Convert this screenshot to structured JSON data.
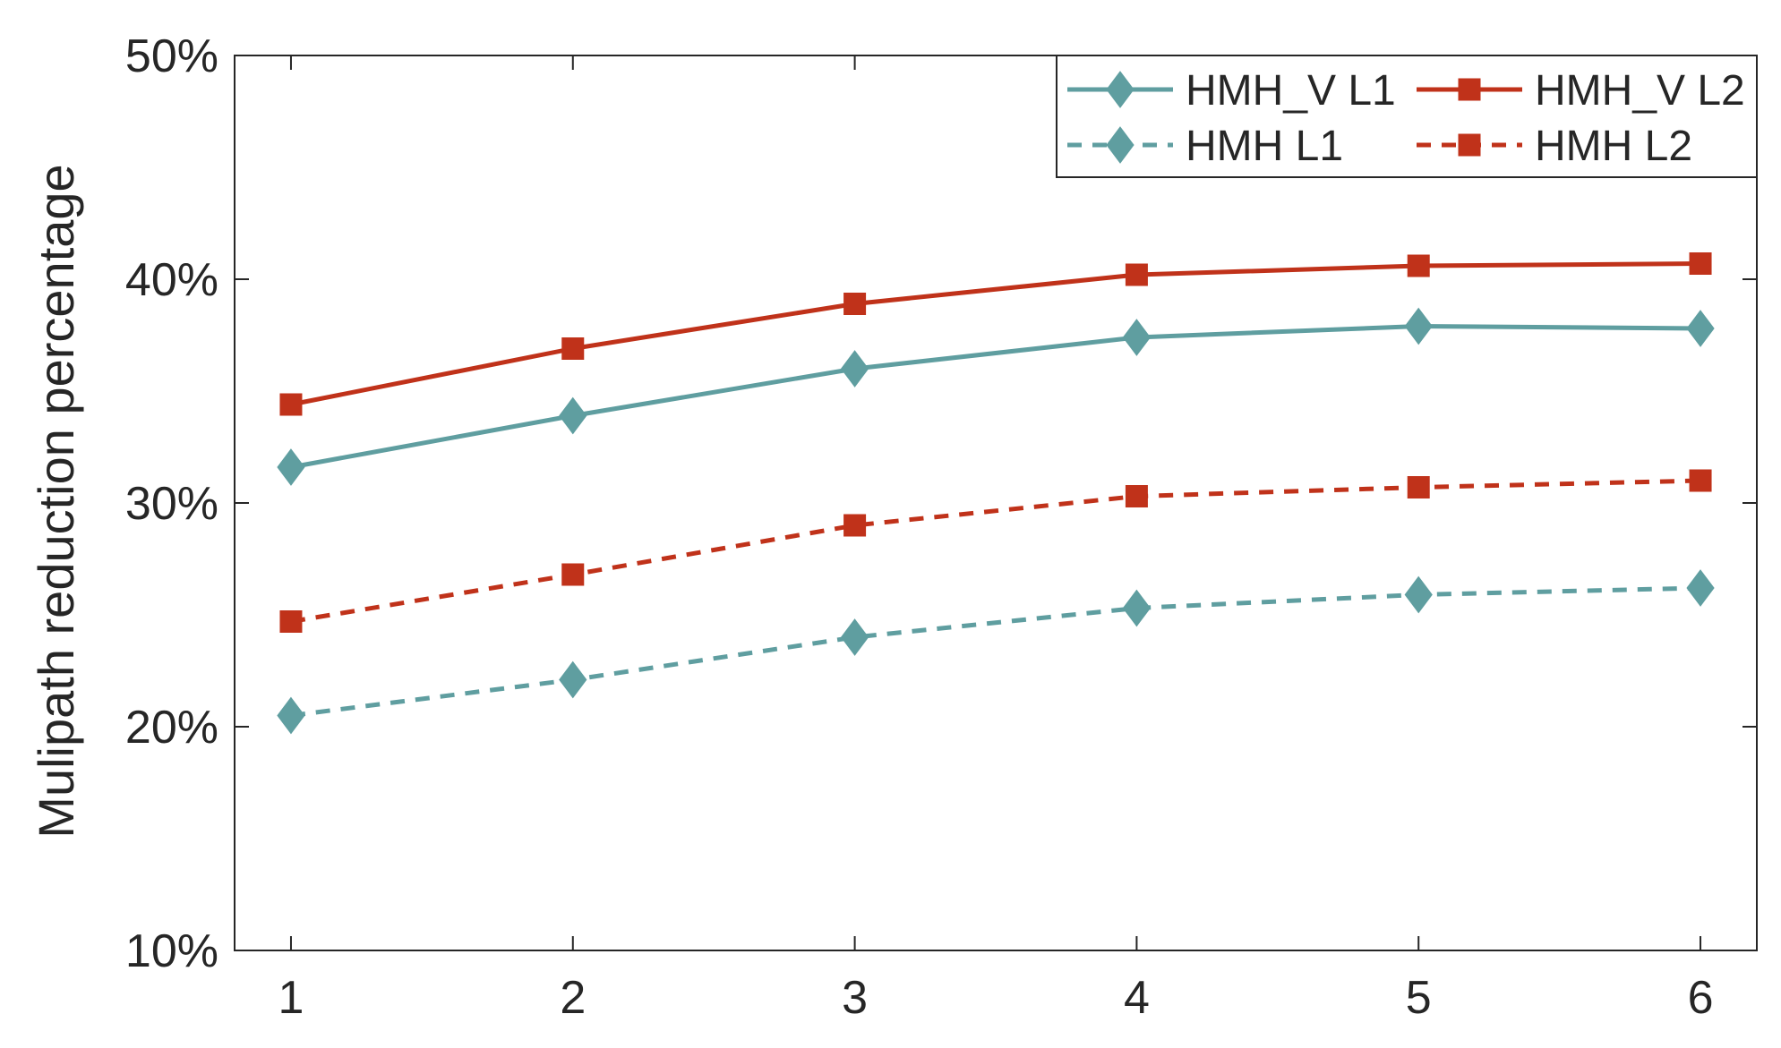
{
  "chart_data": {
    "type": "line",
    "title": "",
    "xlabel": "",
    "ylabel": "Mulipath reduction percentage",
    "x": [
      1,
      2,
      3,
      4,
      5,
      6
    ],
    "xlim": [
      0.8,
      6.2
    ],
    "ylim": [
      10,
      50
    ],
    "y_ticks": [
      10,
      20,
      30,
      40,
      50
    ],
    "y_tick_labels": [
      "10%",
      "20%",
      "30%",
      "40%",
      "50%"
    ],
    "x_tick_labels": [
      "1",
      "2",
      "3",
      "4",
      "5",
      "6"
    ],
    "grid": false,
    "legend_position": "top-right",
    "series": [
      {
        "name": "HMH_V L1",
        "values": [
          31.6,
          33.9,
          36.0,
          37.4,
          37.9,
          37.8
        ],
        "color": "#5f9ea0",
        "dash": "solid",
        "marker": "diamond"
      },
      {
        "name": "HMH_V L2",
        "values": [
          34.4,
          36.9,
          38.9,
          40.2,
          40.6,
          40.7
        ],
        "color": "#c0321a",
        "dash": "solid",
        "marker": "square"
      },
      {
        "name": "HMH L1",
        "values": [
          20.5,
          22.1,
          24.0,
          25.3,
          25.9,
          26.2
        ],
        "color": "#5f9ea0",
        "dash": "dashed",
        "marker": "diamond"
      },
      {
        "name": "HMH L2",
        "values": [
          24.7,
          26.8,
          29.0,
          30.3,
          30.7,
          31.0
        ],
        "color": "#c0321a",
        "dash": "dashed",
        "marker": "square"
      }
    ]
  }
}
